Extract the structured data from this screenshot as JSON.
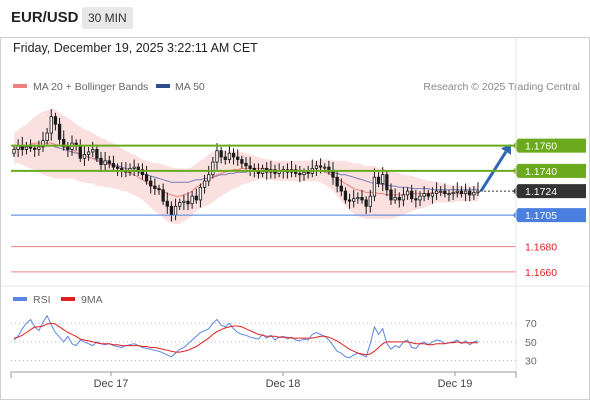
{
  "header": {
    "pair": "EUR/USD",
    "timeframe": "30 MIN"
  },
  "datetime": "Friday, December 19, 2025 3:22:11 AM CET",
  "legend": {
    "ma20_bb": "MA 20 + Bollinger Bands",
    "ma50": "MA 50",
    "credit": "Research © 2025 Trading Central",
    "rsi": "RSI",
    "rsi_ma": "9MA"
  },
  "colors": {
    "candle": "#1a1a1a",
    "bb_fill": "#f9d6d6",
    "ma20": "#f08080",
    "ma50": "#7a7ab8",
    "resistance": "#6aaa1c",
    "current": "#333333",
    "support_blue": "#4a7fe0",
    "support_red": "#f08080",
    "arrow": "#2f66b3",
    "rsi": "#5b86e5",
    "rsi_ma": "#e02020"
  },
  "chart_data": [
    {
      "type": "candlestick",
      "title": "EUR/USD 30 MIN",
      "xlabel": "",
      "ylabel": "",
      "x_ticks": [
        "Dec 17",
        "Dec 18",
        "Dec 19"
      ],
      "ylim": [
        1.1652,
        1.1793
      ],
      "price_levels": [
        {
          "label": "1.1760",
          "value": 1.176,
          "kind": "resistance"
        },
        {
          "label": "1.1740",
          "value": 1.174,
          "kind": "resistance"
        },
        {
          "label": "1.1724",
          "value": 1.1724,
          "kind": "current"
        },
        {
          "label": "1.1705",
          "value": 1.1705,
          "kind": "pivot"
        },
        {
          "label": "1.1680",
          "value": 1.168,
          "kind": "support"
        },
        {
          "label": "1.1660",
          "value": 1.166,
          "kind": "support"
        }
      ],
      "close": [
        1.1757,
        1.176,
        1.1757,
        1.1759,
        1.1758,
        1.1757,
        1.1759,
        1.1764,
        1.177,
        1.1783,
        1.1777,
        1.1765,
        1.1759,
        1.1757,
        1.1762,
        1.176,
        1.175,
        1.1753,
        1.1755,
        1.1757,
        1.175,
        1.1745,
        1.1748,
        1.1746,
        1.1743,
        1.1742,
        1.174,
        1.1739,
        1.1742,
        1.1743,
        1.1741,
        1.1737,
        1.1732,
        1.1728,
        1.1726,
        1.1725,
        1.1716,
        1.1712,
        1.1705,
        1.1712,
        1.1715,
        1.1716,
        1.1714,
        1.172,
        1.1717,
        1.1727,
        1.1732,
        1.1737,
        1.1747,
        1.1756,
        1.1751,
        1.1749,
        1.1754,
        1.1751,
        1.1749,
        1.1746,
        1.1744,
        1.1742,
        1.174,
        1.1738,
        1.1742,
        1.1739,
        1.1741,
        1.1738,
        1.174,
        1.1741,
        1.1739,
        1.1741,
        1.1738,
        1.1737,
        1.1739,
        1.1738,
        1.1742,
        1.1744,
        1.1743,
        1.1743,
        1.174,
        1.1735,
        1.1728,
        1.1724,
        1.1717,
        1.1716,
        1.1718,
        1.1719,
        1.1717,
        1.1712,
        1.172,
        1.1735,
        1.173,
        1.1737,
        1.1725,
        1.1717,
        1.1719,
        1.1717,
        1.1721,
        1.1724,
        1.1718,
        1.1717,
        1.172,
        1.1722,
        1.172,
        1.1722,
        1.1724,
        1.1724,
        1.1722,
        1.1722,
        1.1723,
        1.1724,
        1.1722,
        1.1724,
        1.1721,
        1.1723,
        1.1724
      ],
      "ma20": [
        1.1758,
        1.1759,
        1.176,
        1.176,
        1.1761,
        1.1762,
        1.1762,
        1.1762,
        1.1762,
        1.1762,
        1.1761,
        1.176,
        1.1759,
        1.1758,
        1.1757,
        1.1755,
        1.1753,
        1.1752,
        1.1751,
        1.175,
        1.1748,
        1.1747,
        1.1746,
        1.1745,
        1.1744,
        1.1743,
        1.1741,
        1.174,
        1.1738,
        1.1737,
        1.1735,
        1.1733,
        1.1731,
        1.1729,
        1.1727,
        1.1726,
        1.1724,
        1.1722,
        1.1721,
        1.172,
        1.172,
        1.1721,
        1.1722,
        1.1724,
        1.1727,
        1.1729,
        1.1731,
        1.1733,
        1.1735,
        1.1737,
        1.1738,
        1.1739,
        1.174,
        1.1741,
        1.1741,
        1.1742,
        1.1742,
        1.1742,
        1.1742,
        1.1742,
        1.1742,
        1.1741,
        1.1741,
        1.174,
        1.174,
        1.174,
        1.174,
        1.174,
        1.174,
        1.174,
        1.174,
        1.174,
        1.174,
        1.174,
        1.174,
        1.1739,
        1.1738,
        1.1736,
        1.1734,
        1.1732,
        1.173,
        1.1728,
        1.1726,
        1.1725,
        1.1724,
        1.1723,
        1.1723,
        1.1723,
        1.1722,
        1.1722,
        1.1721,
        1.1721,
        1.1721,
        1.1721,
        1.1721,
        1.1722,
        1.1722,
        1.1722,
        1.1722,
        1.1722,
        1.1722,
        1.1723,
        1.1723,
        1.1723,
        1.1722,
        1.1722,
        1.1722,
        1.1722,
        1.1722,
        1.1722,
        1.1722,
        1.1722,
        1.1722
      ],
      "ma50": [
        1.1758,
        1.1758,
        1.1759,
        1.1759,
        1.176,
        1.176,
        1.176,
        1.176,
        1.176,
        1.176,
        1.1759,
        1.1758,
        1.1757,
        1.1756,
        1.1755,
        1.1754,
        1.1753,
        1.1752,
        1.1751,
        1.175,
        1.1749,
        1.1748,
        1.1747,
        1.1746,
        1.1745,
        1.1744,
        1.1743,
        1.1742,
        1.1741,
        1.174,
        1.1739,
        1.1738,
        1.1737,
        1.1736,
        1.1735,
        1.1734,
        1.1733,
        1.1732,
        1.1731,
        1.1731,
        1.1731,
        1.1731,
        1.1731,
        1.1732,
        1.1733,
        1.1733,
        1.1734,
        1.1734,
        1.1735,
        1.1736,
        1.1737,
        1.1737,
        1.1738,
        1.1738,
        1.1739,
        1.1739,
        1.1739,
        1.174,
        1.174,
        1.174,
        1.174,
        1.174,
        1.174,
        1.174,
        1.174,
        1.174,
        1.174,
        1.174,
        1.174,
        1.174,
        1.174,
        1.174,
        1.174,
        1.174,
        1.174,
        1.174,
        1.1739,
        1.1739,
        1.1738,
        1.1737,
        1.1737,
        1.1736,
        1.1735,
        1.1734,
        1.1733,
        1.1732,
        1.1731,
        1.173,
        1.173,
        1.1729,
        1.1729,
        1.1728,
        1.1728,
        1.1727,
        1.1727,
        1.1727,
        1.1726,
        1.1726,
        1.1726,
        1.1726,
        1.1726,
        1.1725,
        1.1725,
        1.1725,
        1.1725,
        1.1725,
        1.1725,
        1.1725,
        1.1725,
        1.1725,
        1.1725,
        1.1725,
        1.1725
      ],
      "bb_half_width": [
        0.0012,
        0.0013,
        0.0015,
        0.0017,
        0.0019,
        0.0021,
        0.0023,
        0.0025,
        0.0026,
        0.0027,
        0.0027,
        0.0026,
        0.0025,
        0.0024,
        0.0023,
        0.0022,
        0.0022,
        0.0021,
        0.0021,
        0.002,
        0.002,
        0.0019,
        0.0019,
        0.0018,
        0.0018,
        0.0017,
        0.0017,
        0.0016,
        0.0016,
        0.0016,
        0.0016,
        0.0016,
        0.0017,
        0.0018,
        0.0019,
        0.002,
        0.0021,
        0.0022,
        0.0022,
        0.0022,
        0.0022,
        0.0021,
        0.002,
        0.0019,
        0.0019,
        0.0019,
        0.0019,
        0.002,
        0.002,
        0.0019,
        0.0018,
        0.0017,
        0.0016,
        0.0015,
        0.0014,
        0.0013,
        0.0012,
        0.0011,
        0.001,
        0.0009,
        0.0008,
        0.0008,
        0.0008,
        0.0008,
        0.0008,
        0.0008,
        0.0008,
        0.0008,
        0.0008,
        0.0008,
        0.0008,
        0.0008,
        0.0008,
        0.0008,
        0.0009,
        0.001,
        0.0011,
        0.0012,
        0.0014,
        0.0016,
        0.0018,
        0.0019,
        0.002,
        0.0021,
        0.0021,
        0.0021,
        0.0021,
        0.0021,
        0.002,
        0.002,
        0.0019,
        0.0019,
        0.0018,
        0.0017,
        0.0016,
        0.0015,
        0.0014,
        0.0013,
        0.0012,
        0.0011,
        0.001,
        0.0009,
        0.0008,
        0.0008,
        0.0007,
        0.0007,
        0.0007,
        0.0006,
        0.0006,
        0.0006,
        0.0006,
        0.0006,
        0.0006
      ],
      "forecast": {
        "from": 1.1724,
        "to": 1.176
      }
    },
    {
      "type": "line",
      "title": "RSI",
      "x_ticks": [
        "Dec 17",
        "Dec 18",
        "Dec 19"
      ],
      "ylim": [
        22,
        82
      ],
      "y_ticks": [
        "70",
        "50",
        "30"
      ],
      "series": [
        {
          "name": "RSI",
          "values": [
            52,
            56,
            64,
            70,
            74,
            66,
            62,
            71,
            78,
            68,
            60,
            55,
            50,
            56,
            48,
            46,
            52,
            50,
            48,
            46,
            50,
            48,
            47,
            48,
            46,
            45,
            44,
            46,
            47,
            48,
            46,
            44,
            43,
            42,
            41,
            40,
            38,
            36,
            34,
            38,
            42,
            44,
            48,
            52,
            56,
            60,
            62,
            64,
            70,
            74,
            68,
            66,
            70,
            64,
            60,
            58,
            57,
            55,
            54,
            53,
            58,
            54,
            57,
            52,
            55,
            56,
            53,
            55,
            52,
            51,
            53,
            52,
            58,
            60,
            58,
            56,
            52,
            46,
            40,
            38,
            34,
            33,
            36,
            38,
            36,
            34,
            48,
            66,
            58,
            64,
            48,
            42,
            46,
            44,
            50,
            52,
            44,
            43,
            48,
            50,
            47,
            50,
            52,
            51,
            48,
            49,
            50,
            52,
            48,
            51,
            47,
            50,
            51
          ]
        },
        {
          "name": "9MA",
          "values": [
            54,
            55,
            57,
            60,
            63,
            66,
            66,
            67,
            69,
            70,
            69,
            66,
            63,
            60,
            58,
            56,
            53,
            52,
            51,
            50,
            49,
            48,
            48,
            48,
            47,
            47,
            46,
            46,
            46,
            46,
            46,
            45,
            45,
            44,
            44,
            43,
            42,
            41,
            40,
            39,
            39,
            40,
            41,
            43,
            45,
            48,
            51,
            54,
            58,
            61,
            63,
            65,
            66,
            67,
            67,
            66,
            64,
            62,
            60,
            58,
            57,
            56,
            56,
            56,
            55,
            55,
            55,
            54,
            54,
            54,
            54,
            54,
            54,
            55,
            56,
            56,
            55,
            53,
            51,
            48,
            45,
            42,
            40,
            38,
            37,
            36,
            37,
            40,
            44,
            48,
            50,
            50,
            50,
            50,
            50,
            50,
            49,
            48,
            48,
            48,
            47,
            47,
            48,
            48,
            48,
            49,
            49,
            50,
            49,
            49,
            49,
            49,
            49
          ]
        }
      ]
    }
  ]
}
